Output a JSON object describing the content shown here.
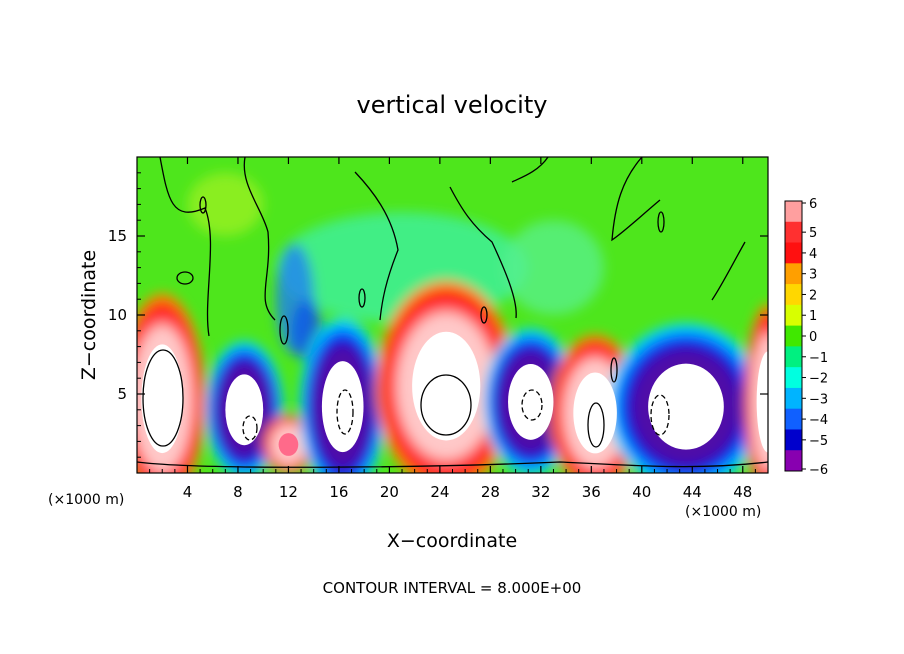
{
  "chart_data": {
    "type": "heatmap",
    "title": "vertical velocity",
    "xlabel": "X−coordinate",
    "ylabel": "Z−coordinate",
    "x_unit_left": "(×1000 m)",
    "x_unit_right": "(×1000 m)",
    "footer": "CONTOUR INTERVAL = 8.000E+00",
    "xlim": [
      0,
      50
    ],
    "ylim": [
      0,
      20
    ],
    "x_ticks": [
      4,
      8,
      12,
      16,
      20,
      24,
      28,
      32,
      36,
      40,
      44,
      48
    ],
    "y_ticks": [
      5,
      10,
      15
    ],
    "colorbar": {
      "levels": [
        6,
        5,
        4,
        3,
        2,
        1,
        0,
        -1,
        -2,
        -3,
        -4,
        -5,
        -6
      ],
      "labels": [
        "6",
        "5",
        "4",
        "3",
        "2",
        "1",
        "0",
        "−1",
        "−2",
        "−3",
        "−4",
        "−5",
        "−6"
      ],
      "colors": [
        "#ff9f9f",
        "#ff3030",
        "#ff1010",
        "#ff9f00",
        "#ffd700",
        "#d8ff00",
        "#40e800",
        "#00f080",
        "#00ffe0",
        "#00b4ff",
        "#1060ff",
        "#0000cc",
        "#8800b0"
      ],
      "white_above": 6,
      "white_below": -6
    },
    "features": [
      {
        "kind": "updraft",
        "x": 2.0,
        "z": 4.7,
        "rx": 2.2,
        "rz": 4.3
      },
      {
        "kind": "downdraft",
        "x": 8.5,
        "z": 4.0,
        "rx": 2.0,
        "rz": 2.8
      },
      {
        "kind": "updraft-weak",
        "x": 12.0,
        "z": 1.8,
        "rx": 1.3,
        "rz": 1.2
      },
      {
        "kind": "downdraft",
        "x": 16.3,
        "z": 4.2,
        "rx": 2.2,
        "rz": 3.6
      },
      {
        "kind": "updraft",
        "x": 24.5,
        "z": 5.5,
        "rx": 3.6,
        "rz": 4.3
      },
      {
        "kind": "downdraft",
        "x": 31.2,
        "z": 4.5,
        "rx": 2.4,
        "rz": 3.0
      },
      {
        "kind": "updraft",
        "x": 36.3,
        "z": 3.8,
        "rx": 2.3,
        "rz": 3.2
      },
      {
        "kind": "downdraft",
        "x": 43.5,
        "z": 4.2,
        "rx": 4.0,
        "rz": 3.4
      },
      {
        "kind": "updraft",
        "x": 50.0,
        "z": 4.5,
        "rx": 1.2,
        "rz": 4.0
      }
    ]
  }
}
